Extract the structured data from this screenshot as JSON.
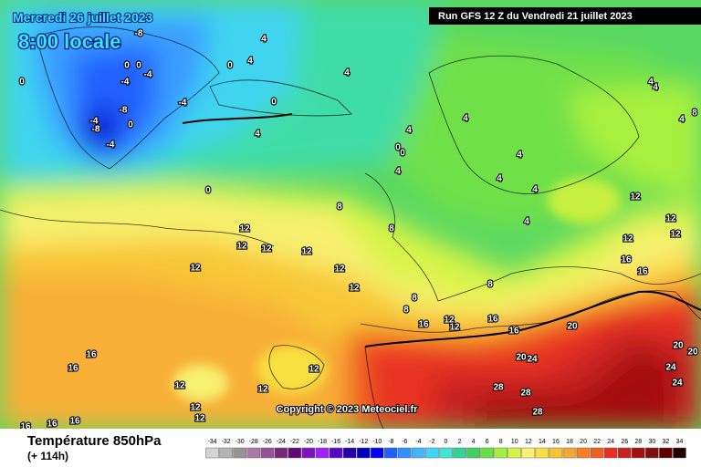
{
  "header": {
    "date": "Mercredi 26 juillet 2023",
    "time": "8:00 locale",
    "run": "Run GFS 12 Z du Vendredi 21 juillet 2023"
  },
  "map": {
    "contour_labels": [
      "-8",
      "4",
      "0",
      "0",
      "-4",
      "-4",
      "0",
      "0",
      "0",
      "-4",
      "-8",
      "-4",
      "-8",
      "0",
      "-4",
      "4",
      "4",
      "4",
      "4",
      "4",
      "0",
      "0",
      "4",
      "4",
      "4",
      "4",
      "0",
      "8",
      "4",
      "8",
      "4",
      "4",
      "8",
      "4",
      "12",
      "12",
      "12",
      "12",
      "12",
      "12",
      "12",
      "12",
      "12",
      "12",
      "16",
      "16",
      "12",
      "8",
      "8",
      "8",
      "16",
      "12",
      "12",
      "16",
      "16",
      "20",
      "20",
      "24",
      "20",
      "20",
      "16",
      "16",
      "24",
      "12",
      "12",
      "24",
      "12",
      "28",
      "28",
      "12",
      "12",
      "28",
      "16",
      "16",
      "16"
    ],
    "copyright": "Copyright © 2023 Meteociel.fr"
  },
  "footer": {
    "title": "Température 850hPa",
    "subtitle": "(+ 114h)"
  },
  "scale": {
    "ticks": [
      -34,
      -32,
      -30,
      -28,
      -26,
      -24,
      -22,
      -20,
      -18,
      -16,
      -14,
      -12,
      -10,
      -8,
      -6,
      -4,
      -2,
      0,
      2,
      4,
      6,
      8,
      10,
      12,
      14,
      16,
      18,
      20,
      22,
      24,
      26,
      28,
      30,
      32,
      34
    ],
    "colors": [
      "#d4d4d4",
      "#b4b4b4",
      "#949494",
      "#a878a8",
      "#985098",
      "#782878",
      "#600878",
      "#8010c0",
      "#a020ff",
      "#5808c8",
      "#2800a8",
      "#0000c0",
      "#0000ff",
      "#2060ff",
      "#3090ff",
      "#40b4ff",
      "#40d4f8",
      "#40e4d0",
      "#30d494",
      "#40d060",
      "#68e040",
      "#a4f040",
      "#d4f444",
      "#f8f070",
      "#f8e040",
      "#f8c430",
      "#f8a430",
      "#f88020",
      "#f06020",
      "#e83020",
      "#c82020",
      "#a41010",
      "#801010",
      "#600000",
      "#200000"
    ]
  }
}
